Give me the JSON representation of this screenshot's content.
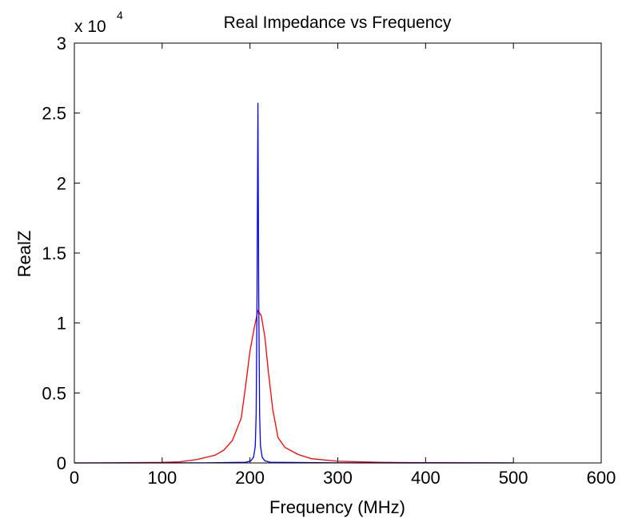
{
  "chart_data": {
    "type": "line",
    "title": "Real Impedance vs Frequency",
    "xlabel": "Frequency (MHz)",
    "ylabel": "RealZ",
    "y_multiplier_label": "x 10",
    "y_multiplier_exponent": "4",
    "xlim": [
      0,
      600
    ],
    "ylim": [
      0,
      30000
    ],
    "x_ticks": [
      0,
      100,
      200,
      300,
      400,
      500,
      600
    ],
    "x_tick_labels": [
      "0",
      "100",
      "200",
      "300",
      "400",
      "500",
      "600"
    ],
    "y_ticks": [
      0,
      5000,
      10000,
      15000,
      20000,
      25000,
      30000
    ],
    "y_tick_labels": [
      "0",
      "0.5",
      "1",
      "1.5",
      "2",
      "2.5",
      "3"
    ],
    "grid": false,
    "series": [
      {
        "color": "#ff0000",
        "points": [
          [
            0,
            0
          ],
          [
            50,
            10
          ],
          [
            100,
            40
          ],
          [
            120,
            80
          ],
          [
            140,
            250
          ],
          [
            160,
            550
          ],
          [
            170,
            900
          ],
          [
            180,
            1600
          ],
          [
            190,
            3200
          ],
          [
            195,
            5500
          ],
          [
            200,
            8000
          ],
          [
            205,
            9700
          ],
          [
            209,
            10900
          ],
          [
            213,
            10500
          ],
          [
            217,
            9000
          ],
          [
            221,
            6500
          ],
          [
            226,
            3800
          ],
          [
            232,
            1800
          ],
          [
            240,
            1100
          ],
          [
            255,
            600
          ],
          [
            270,
            300
          ],
          [
            300,
            120
          ],
          [
            350,
            40
          ],
          [
            400,
            15
          ],
          [
            500,
            5
          ]
        ]
      },
      {
        "color": "#0000ff",
        "points": [
          [
            0,
            0
          ],
          [
            150,
            5
          ],
          [
            195,
            50
          ],
          [
            201,
            150
          ],
          [
            204,
            400
          ],
          [
            206,
            1200
          ],
          [
            207,
            3500
          ],
          [
            208,
            12000
          ],
          [
            209,
            25700
          ],
          [
            210,
            12000
          ],
          [
            211,
            3500
          ],
          [
            212,
            1200
          ],
          [
            214,
            400
          ],
          [
            217,
            150
          ],
          [
            223,
            50
          ],
          [
            300,
            5
          ],
          [
            500,
            0
          ]
        ]
      }
    ]
  },
  "colors": {
    "axes": "#000000",
    "background": "#ffffff"
  }
}
